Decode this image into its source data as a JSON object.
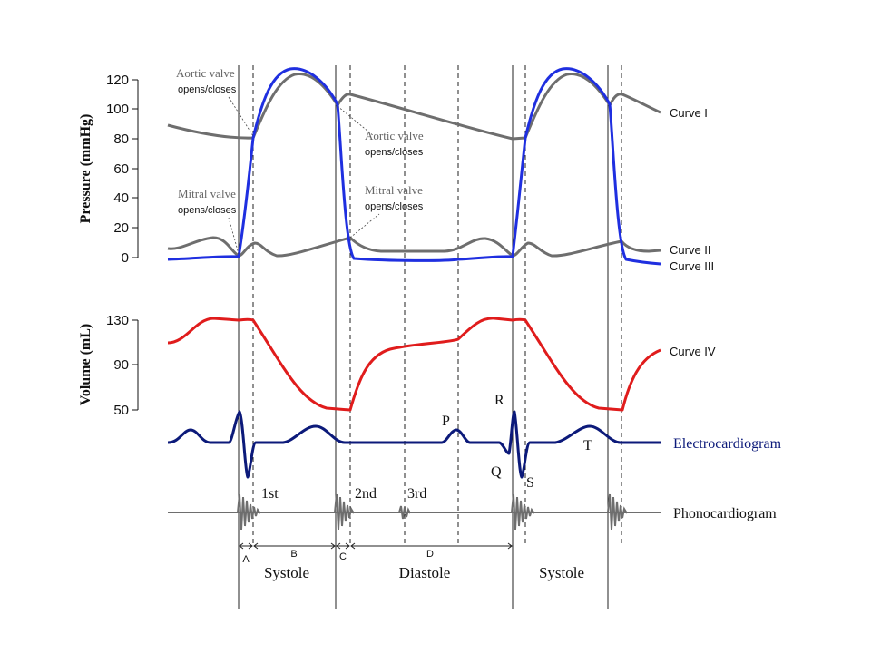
{
  "colors": {
    "aortic_pressure": "#6e6e6e",
    "ventricular_pressure": "#1f2fe0",
    "atrial_pressure": "#6e6e6e",
    "volume": "#e01c1c",
    "ecg": "#0c1a7a",
    "phono": "#6e6e6e",
    "grid_line": "#222222"
  },
  "pressure_axis": {
    "title": "Pressure (mmHg)",
    "ticks": [
      "120",
      "100",
      "80",
      "60",
      "40",
      "20",
      "0"
    ]
  },
  "volume_axis": {
    "title": "Volume (mL)",
    "ticks": [
      "130",
      "90",
      "50"
    ]
  },
  "curves": {
    "curve_1": "Curve I",
    "curve_2": "Curve II",
    "curve_3": "Curve III",
    "curve_4": "Curve IV"
  },
  "annotations": {
    "aortic_1_line1": "Aortic valve",
    "aortic_1_line2": "opens/closes",
    "mitral_1_line1": "Mitral valve",
    "mitral_1_line2": "opens/closes",
    "aortic_2_line1": "Aortic valve",
    "aortic_2_line2": "opens/closes",
    "mitral_2_line1": "Mitral valve",
    "mitral_2_line2": "opens/closes"
  },
  "ecg": {
    "label": "Electrocardiogram",
    "waves": {
      "p": "P",
      "q": "Q",
      "r": "R",
      "s": "S",
      "t": "T"
    }
  },
  "phono": {
    "label": "Phonocardiogram",
    "sounds": {
      "first": "1st",
      "second": "2nd",
      "third": "3rd"
    }
  },
  "segments": {
    "a": "A",
    "b": "B",
    "c": "C",
    "d": "D"
  },
  "phases": {
    "systole_1": "Systole",
    "diastole": "Diastole",
    "systole_2": "Systole"
  }
}
